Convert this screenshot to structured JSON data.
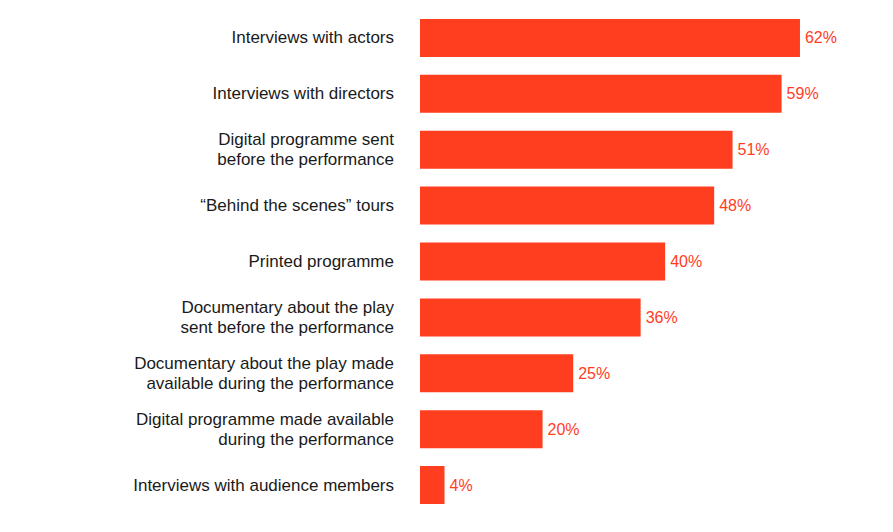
{
  "chart_data": {
    "type": "bar",
    "orientation": "horizontal",
    "categories": [
      "Interviews with actors",
      "Interviews with directors",
      "Digital programme sent\nbefore the performance",
      "“Behind the scenes” tours",
      "Printed programme",
      "Documentary about the play\nsent before the performance",
      "Documentary about the play made\navailable during the performance",
      "Digital programme made available\nduring the performance",
      "Interviews with audience members"
    ],
    "values": [
      62,
      59,
      51,
      48,
      40,
      36,
      25,
      20,
      4
    ],
    "value_labels": [
      "62%",
      "59%",
      "51%",
      "48%",
      "40%",
      "36%",
      "25%",
      "20%",
      "4%"
    ],
    "color": "#ff3d1f",
    "xlim": [
      0,
      70
    ],
    "grid": false,
    "data_labels": true,
    "tick_labels": "y"
  }
}
